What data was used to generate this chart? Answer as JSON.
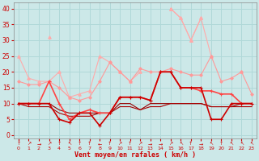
{
  "background_color": "#cce8e8",
  "grid_color": "#b0d8d8",
  "xlabel": "Vent moyen/en rafales ( km/h )",
  "xlabel_color": "#cc0000",
  "xlabel_fontsize": 6,
  "xticks": [
    0,
    1,
    2,
    3,
    4,
    5,
    6,
    7,
    8,
    9,
    10,
    11,
    12,
    13,
    14,
    15,
    16,
    17,
    18,
    19,
    20,
    21,
    22,
    23
  ],
  "yticks": [
    0,
    5,
    10,
    15,
    20,
    25,
    30,
    35,
    40
  ],
  "ylim": [
    -1,
    42
  ],
  "xlim": [
    -0.5,
    23.5
  ],
  "series": [
    {
      "y": [
        null,
        null,
        null,
        31,
        null,
        null,
        null,
        null,
        null,
        null,
        null,
        null,
        null,
        null,
        null,
        40,
        37,
        30,
        37,
        null,
        null,
        null,
        null,
        null
      ],
      "color": "#ffaaaa",
      "linewidth": 0.8,
      "marker": "^",
      "markersize": 2.5,
      "zorder": 2
    },
    {
      "y": [
        25,
        18,
        17,
        17,
        20,
        12,
        13,
        14,
        25,
        23,
        20,
        17,
        20,
        null,
        null,
        40,
        37,
        30,
        37,
        25,
        null,
        null,
        20,
        null
      ],
      "color": "#ffaaaa",
      "linewidth": 0.8,
      "marker": "^",
      "markersize": 2.5,
      "zorder": 2
    },
    {
      "y": [
        17,
        16,
        16,
        17,
        15,
        12,
        11,
        12,
        17,
        23,
        20,
        17,
        21,
        20,
        20,
        21,
        20,
        19,
        19,
        25,
        17,
        18,
        20,
        13
      ],
      "color": "#ff9999",
      "linewidth": 0.8,
      "marker": "D",
      "markersize": 1.8,
      "zorder": 3
    },
    {
      "y": [
        10,
        10,
        10,
        17,
        10,
        5,
        7,
        8,
        7,
        7,
        12,
        12,
        12,
        11,
        20,
        20,
        15,
        15,
        14,
        14,
        13,
        13,
        10,
        10
      ],
      "color": "#ff4444",
      "linewidth": 1.2,
      "marker": "+",
      "markersize": 3,
      "zorder": 5
    },
    {
      "y": [
        10,
        10,
        10,
        10,
        5,
        4,
        7,
        7,
        3,
        7,
        12,
        12,
        12,
        11,
        20,
        20,
        15,
        15,
        15,
        5,
        5,
        10,
        10,
        10
      ],
      "color": "#cc0000",
      "linewidth": 1.2,
      "marker": "+",
      "markersize": 3,
      "zorder": 6
    },
    {
      "y": [
        10,
        10,
        10,
        10,
        8,
        7,
        7,
        7,
        7,
        7,
        10,
        10,
        8,
        10,
        10,
        10,
        10,
        10,
        10,
        9,
        9,
        9,
        10,
        10
      ],
      "color": "#990000",
      "linewidth": 0.8,
      "marker": null,
      "markersize": 0,
      "zorder": 4
    },
    {
      "y": [
        10,
        9,
        9,
        9,
        7,
        6,
        6,
        6,
        7,
        7,
        9,
        9,
        8,
        9,
        9,
        10,
        10,
        10,
        10,
        9,
        9,
        9,
        9,
        9
      ],
      "color": "#aa0000",
      "linewidth": 0.8,
      "marker": null,
      "markersize": 0,
      "zorder": 4
    }
  ],
  "arrow_symbols": [
    "↑",
    "↗",
    "→",
    "↗",
    "↑",
    "↖",
    "↑",
    "↑",
    "←",
    "↑",
    "↗",
    "↑",
    "↗",
    "→",
    "→",
    "↗",
    "↖",
    "↑",
    "→",
    "↖",
    "↑",
    "↖",
    "↖",
    "↖"
  ],
  "arrow_color": "#cc0000",
  "tick_fontsize": 4.5,
  "ytick_fontsize": 5.5,
  "tick_color": "#cc0000"
}
